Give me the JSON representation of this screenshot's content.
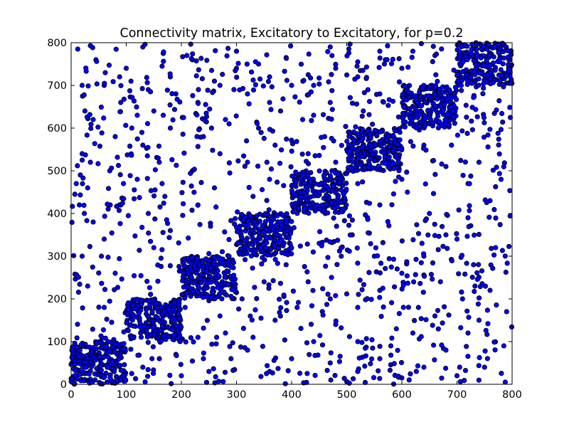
{
  "chart_data": {
    "type": "scatter",
    "title": "Connectivity matrix, Excitatory to Excitatory, for p=0.2",
    "xlabel": "",
    "ylabel": "",
    "xlim": [
      0,
      800
    ],
    "ylim": [
      0,
      800
    ],
    "x_ticks": [
      "0",
      "100",
      "200",
      "300",
      "400",
      "500",
      "600",
      "700",
      "800"
    ],
    "y_ticks": [
      "0",
      "100",
      "200",
      "300",
      "400",
      "500",
      "600",
      "700",
      "800"
    ],
    "grid": false,
    "legend": "none",
    "marker_color": "#0000ff",
    "marker_edge_color": "#000000",
    "blocks": [
      {
        "x_range": [
          0,
          100
        ],
        "y_range": [
          0,
          100
        ]
      },
      {
        "x_range": [
          100,
          200
        ],
        "y_range": [
          100,
          200
        ]
      },
      {
        "x_range": [
          200,
          300
        ],
        "y_range": [
          200,
          300
        ]
      },
      {
        "x_range": [
          300,
          400
        ],
        "y_range": [
          300,
          400
        ]
      },
      {
        "x_range": [
          400,
          500
        ],
        "y_range": [
          400,
          500
        ]
      },
      {
        "x_range": [
          500,
          600
        ],
        "y_range": [
          500,
          600
        ]
      },
      {
        "x_range": [
          600,
          700
        ],
        "y_range": [
          600,
          700
        ]
      },
      {
        "x_range": [
          700,
          800
        ],
        "y_range": [
          700,
          800
        ]
      }
    ],
    "within_block_connection_probability": 0.2,
    "background_points": [
      [
        12,
        785
      ],
      [
        45,
        760
      ],
      [
        88,
        720
      ],
      [
        130,
        790
      ],
      [
        165,
        745
      ],
      [
        210,
        770
      ],
      [
        255,
        735
      ],
      [
        300,
        780
      ],
      [
        340,
        750
      ],
      [
        390,
        765
      ],
      [
        430,
        725
      ],
      [
        470,
        790
      ],
      [
        520,
        755
      ],
      [
        560,
        780
      ],
      [
        600,
        740
      ],
      [
        650,
        610
      ],
      [
        690,
        560
      ],
      [
        740,
        520
      ],
      [
        780,
        480
      ],
      [
        760,
        430
      ],
      [
        720,
        390
      ],
      [
        680,
        350
      ],
      [
        640,
        300
      ],
      [
        600,
        260
      ],
      [
        560,
        220
      ],
      [
        520,
        180
      ],
      [
        480,
        140
      ],
      [
        440,
        100
      ],
      [
        400,
        60
      ],
      [
        360,
        30
      ],
      [
        320,
        80
      ],
      [
        280,
        120
      ],
      [
        240,
        60
      ],
      [
        200,
        20
      ],
      [
        160,
        60
      ],
      [
        130,
        40
      ],
      [
        60,
        180
      ],
      [
        30,
        230
      ],
      [
        80,
        260
      ],
      [
        20,
        300
      ],
      [
        60,
        340
      ],
      [
        40,
        380
      ],
      [
        90,
        420
      ],
      [
        30,
        460
      ],
      [
        70,
        500
      ],
      [
        20,
        540
      ],
      [
        80,
        580
      ],
      [
        40,
        620
      ],
      [
        90,
        660
      ],
      [
        20,
        700
      ],
      [
        150,
        320
      ],
      [
        180,
        360
      ],
      [
        140,
        400
      ],
      [
        170,
        440
      ],
      [
        120,
        480
      ],
      [
        160,
        520
      ],
      [
        130,
        560
      ],
      [
        180,
        600
      ],
      [
        150,
        640
      ],
      [
        190,
        680
      ],
      [
        230,
        420
      ],
      [
        260,
        460
      ],
      [
        220,
        500
      ],
      [
        270,
        540
      ],
      [
        240,
        580
      ],
      [
        280,
        620
      ],
      [
        230,
        660
      ],
      [
        270,
        700
      ],
      [
        330,
        440
      ],
      [
        360,
        480
      ],
      [
        320,
        520
      ],
      [
        370,
        560
      ],
      [
        340,
        600
      ],
      [
        380,
        640
      ],
      [
        320,
        680
      ],
      [
        360,
        720
      ],
      [
        430,
        540
      ],
      [
        460,
        580
      ],
      [
        420,
        620
      ],
      [
        470,
        660
      ],
      [
        440,
        700
      ],
      [
        480,
        740
      ],
      [
        530,
        640
      ],
      [
        560,
        680
      ],
      [
        520,
        720
      ],
      [
        570,
        760
      ],
      [
        620,
        780
      ],
      [
        660,
        770
      ],
      [
        610,
        450
      ],
      [
        650,
        400
      ],
      [
        700,
        340
      ],
      [
        730,
        280
      ],
      [
        760,
        220
      ],
      [
        790,
        170
      ],
      [
        720,
        120
      ],
      [
        680,
        80
      ],
      [
        640,
        40
      ],
      [
        600,
        15
      ],
      [
        560,
        60
      ],
      [
        520,
        100
      ],
      [
        470,
        200
      ],
      [
        430,
        240
      ],
      [
        390,
        280
      ],
      [
        350,
        240
      ],
      [
        310,
        200
      ],
      [
        270,
        160
      ],
      [
        230,
        110
      ],
      [
        190,
        70
      ],
      [
        750,
        40
      ],
      [
        785,
        90
      ],
      [
        710,
        200
      ],
      [
        670,
        240
      ],
      [
        630,
        180
      ],
      [
        590,
        130
      ],
      [
        550,
        300
      ],
      [
        510,
        350
      ],
      [
        490,
        300
      ],
      [
        450,
        330
      ],
      [
        410,
        180
      ],
      [
        370,
        150
      ],
      [
        330,
        110
      ],
      [
        290,
        60
      ],
      [
        250,
        30
      ],
      [
        470,
        50
      ],
      [
        520,
        30
      ],
      [
        580,
        90
      ],
      [
        620,
        120
      ],
      [
        660,
        160
      ],
      [
        700,
        20
      ],
      [
        740,
        150
      ],
      [
        770,
        320
      ],
      [
        720,
        470
      ],
      [
        680,
        510
      ],
      [
        640,
        560
      ],
      [
        600,
        480
      ],
      [
        560,
        420
      ],
      [
        520,
        470
      ],
      [
        480,
        520
      ],
      [
        440,
        630
      ],
      [
        400,
        700
      ],
      [
        360,
        660
      ],
      [
        300,
        740
      ],
      [
        260,
        710
      ],
      [
        220,
        760
      ],
      [
        180,
        720
      ],
      [
        140,
        690
      ],
      [
        100,
        740
      ],
      [
        60,
        700
      ],
      [
        25,
        640
      ],
      [
        110,
        600
      ],
      [
        35,
        520
      ],
      [
        95,
        470
      ],
      [
        15,
        420
      ],
      [
        55,
        300
      ]
    ]
  }
}
